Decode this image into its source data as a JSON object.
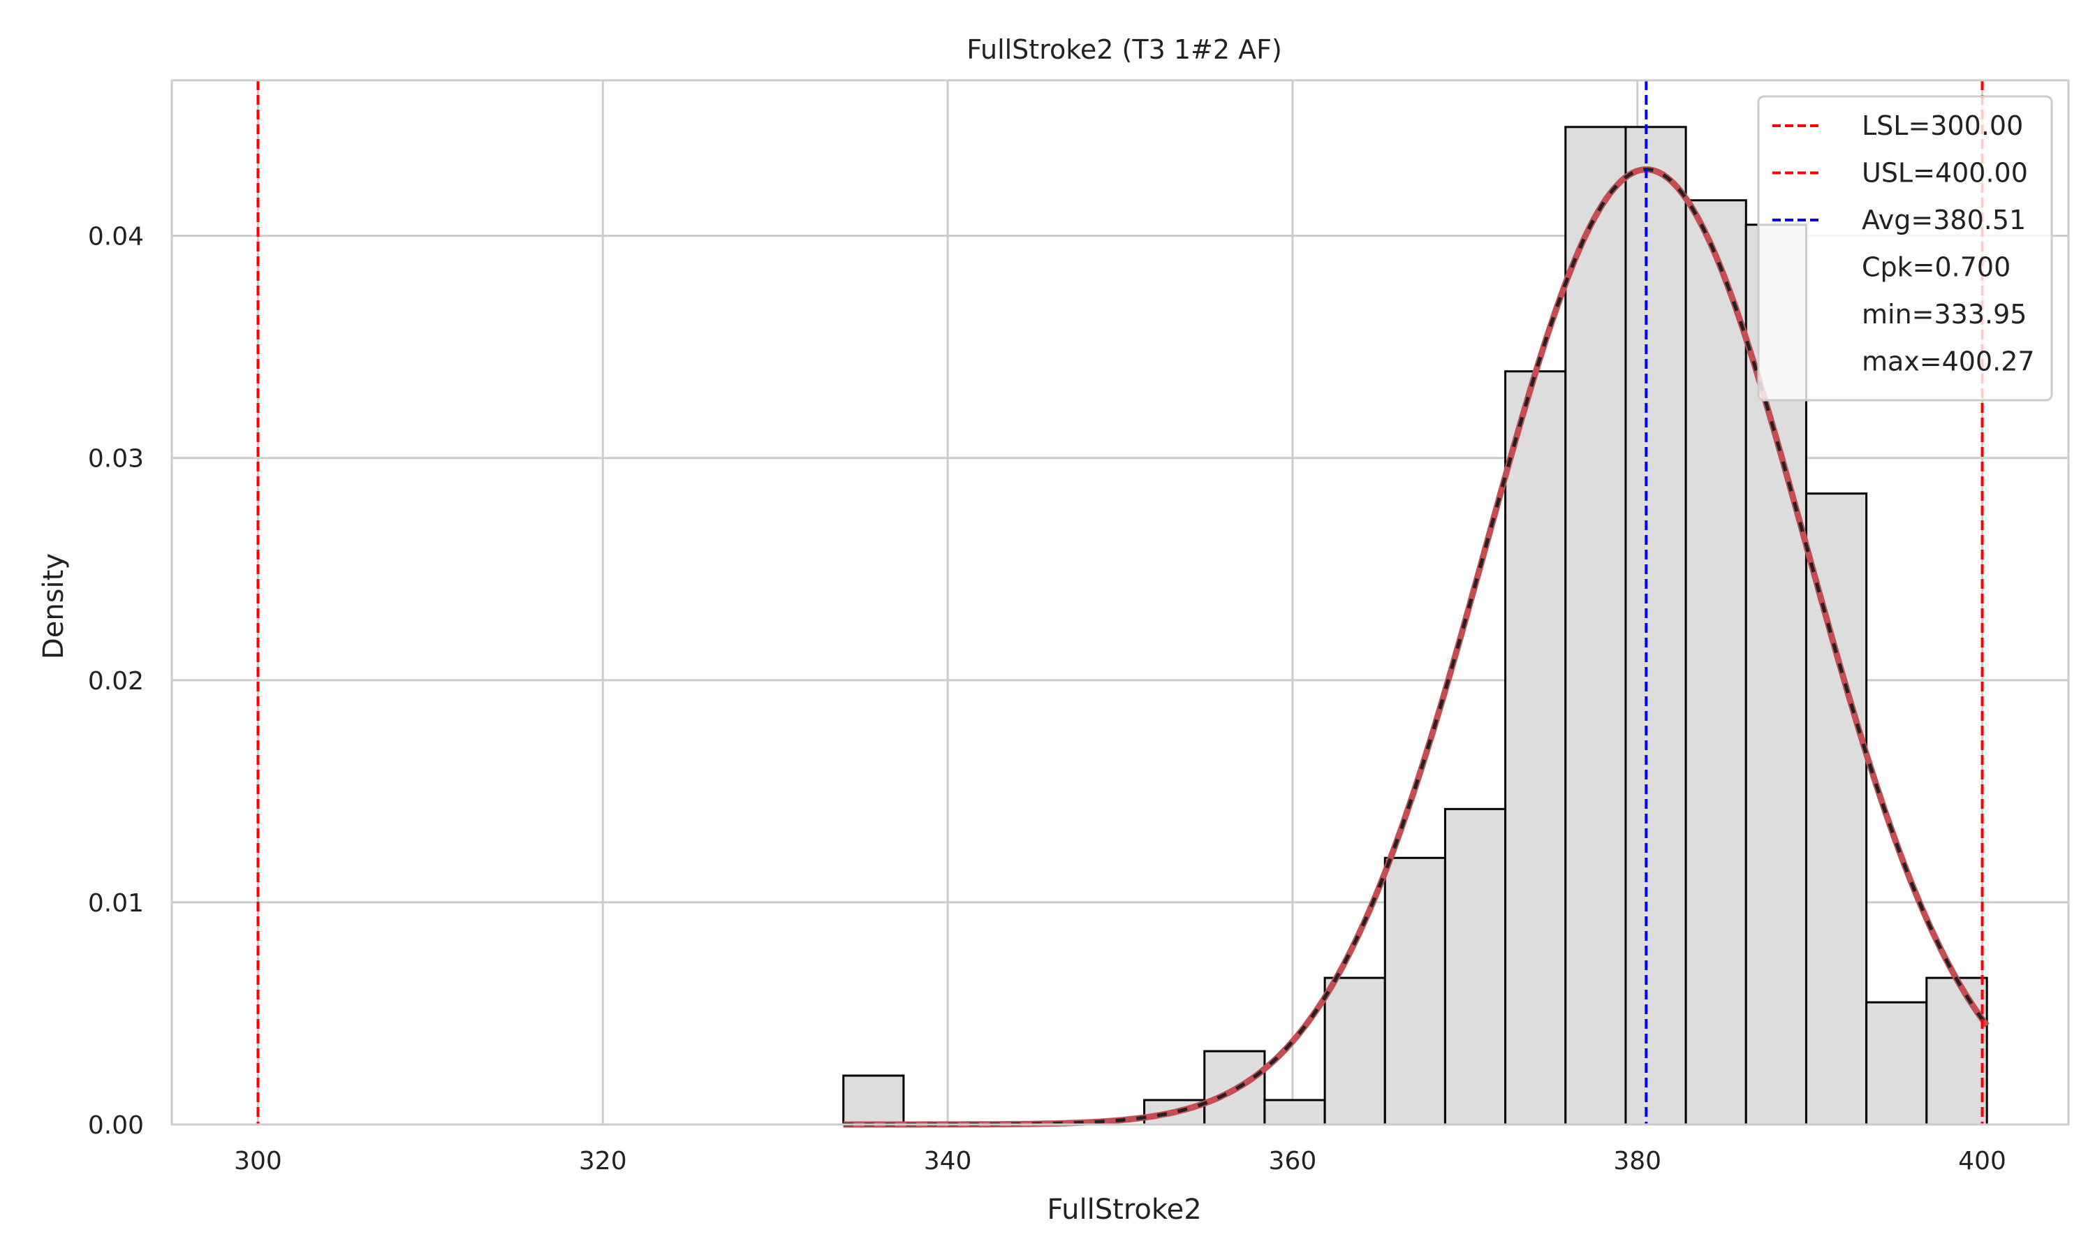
{
  "chart_data": {
    "type": "bar",
    "title": "FullStroke2 (T3 1#2 AF)",
    "xlabel": "FullStroke2",
    "ylabel": "Density",
    "xlim": [
      295,
      405
    ],
    "ylim": [
      0,
      0.047
    ],
    "grid": true,
    "legend_position": "top-right",
    "xticks": [
      300,
      320,
      340,
      360,
      380,
      400
    ],
    "xtick_labels": [
      "300",
      "320",
      "340",
      "360",
      "380",
      "400"
    ],
    "yticks": [
      0.0,
      0.01,
      0.02,
      0.03,
      0.04
    ],
    "ytick_labels": [
      "0.00",
      "0.01",
      "0.02",
      "0.03",
      "0.04"
    ],
    "histogram": {
      "bin_edges": [
        333.95,
        337.44,
        340.93,
        344.42,
        347.91,
        351.4,
        354.89,
        358.38,
        361.87,
        365.36,
        368.85,
        372.34,
        375.83,
        379.32,
        382.81,
        386.3,
        389.79,
        393.28,
        396.77,
        400.27
      ],
      "densities": [
        0.0022,
        0,
        0,
        0,
        0,
        0.0011,
        0.0033,
        0.0011,
        0.0066,
        0.012,
        0.0142,
        0.0339,
        0.0449,
        0.0449,
        0.0416,
        0.0405,
        0.0284,
        0.0055,
        0.0066
      ],
      "fill": "#dddddd",
      "edge": "#000000"
    },
    "normal_fit": {
      "mean": 380.51,
      "std": 9.28,
      "x_range": [
        333.95,
        400.27
      ],
      "color": "#c44e52"
    },
    "reference_lines": [
      {
        "name": "LSL=300.00",
        "x": 300.0,
        "color": "#ff0000",
        "style": "dashed"
      },
      {
        "name": "USL=400.00",
        "x": 400.0,
        "color": "#ff0000",
        "style": "dashed"
      },
      {
        "name": "Avg=380.51",
        "x": 380.51,
        "color": "#0000ff",
        "style": "dashed"
      }
    ],
    "legend": [
      {
        "label": "LSL=300.00",
        "color": "#ff0000",
        "line": true
      },
      {
        "label": "USL=400.00",
        "color": "#ff0000",
        "line": true
      },
      {
        "label": "Avg=380.51",
        "color": "#0000ff",
        "line": true
      },
      {
        "label": "Cpk=0.700",
        "color": "",
        "line": false
      },
      {
        "label": "min=333.95",
        "color": "",
        "line": false
      },
      {
        "label": "max=400.27",
        "color": "",
        "line": false
      }
    ]
  }
}
